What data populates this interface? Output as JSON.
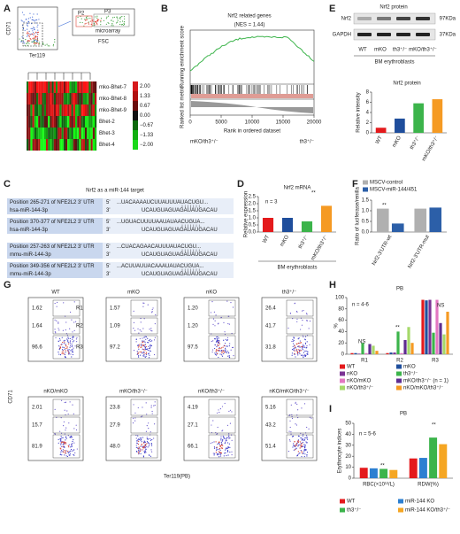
{
  "figure": {
    "A": {
      "letter": "A",
      "y_axis": "CD71",
      "x_axis": "Ter119",
      "x_axis_2": "FSC",
      "gates": [
        "P2",
        "P3"
      ],
      "sorted": "microarray",
      "rows": [
        "mko-Bhet-7",
        "mko-Bhet-8",
        "mko-Bhet-9",
        "Bhet-2",
        "Bhet-3",
        "Bhet-4"
      ],
      "scale": [
        "2.00",
        "1.33",
        "0.67",
        "0.00",
        "−0.67",
        "−1.33",
        "−2.00"
      ]
    },
    "B": {
      "letter": "B",
      "title": "Nrf2 related genes",
      "nes": "(NES = 1.44)",
      "y_axis": "Running enrichment score",
      "y_axis_2": "Ranked list metric",
      "x_axis": "Rank in ordered dataset",
      "x_ticks": [
        "0",
        "5000",
        "10000",
        "15000",
        "20000"
      ],
      "left": "mKO/th3⁺/⁻",
      "right": "th3⁺/⁻"
    },
    "C": {
      "letter": "C",
      "title": "Nrf2 as a miR-144 target",
      "five": "5'",
      "three": "3'",
      "entries": [
        {
          "position": "Position 265-271 of NFE2L2 3' UTR",
          "utr": "...UACAAAAUCUUAUUUAUACUGU...",
          "mirna": "hsa-miR-144-3p",
          "mirna_seq": "UCAUGUAGUAGAUAUGACAU"
        },
        {
          "position": "Position 370-377 of NFE2L2 3' UTR",
          "utr": "...UGUACUUUUAAUAUAACUGUA...",
          "mirna": "hsa-miR-144-3p",
          "mirna_seq": "UCAUGUAGUAGAUAUGACAU"
        },
        {
          "position": "Position 257-263 of NFE2L2 3' UTR",
          "utr": "...CUACAGAACAUUUAUACUGU...",
          "mirna": "mmu-miR-144-3p",
          "mirna_seq": "UCAUGUAGUAGAUAUGACAU"
        },
        {
          "position": "Position 349-356 of NFE2L2 3' UTR",
          "utr": "...ACUUAUUACAAAUAUACUGUA...",
          "mirna": "mmu-miR-144-3p",
          "mirna_seq": "UCAUGUAGUAGAUAUGACAU"
        }
      ]
    },
    "D": {
      "letter": "D"
    },
    "E": {
      "letter": "E",
      "title": "Nrf2 protein",
      "bands": [
        "Nrf2",
        "GAPDH"
      ],
      "sizes": [
        "97KDa",
        "37KDa"
      ],
      "lanes": [
        "WT",
        "mKO",
        "th3⁺/⁻",
        "mKO/th3⁺/⁻"
      ],
      "cells": "BM erythroblasts"
    },
    "F": {
      "letter": "F"
    },
    "G": {
      "letter": "G",
      "y_axis": "CD71",
      "x_axis": "Ter119(PB)",
      "regions": [
        "R1",
        "R2",
        "R3"
      ],
      "plots": [
        {
          "title": "WT",
          "percents": [
            "1.62",
            "1.64",
            "96.6"
          ]
        },
        {
          "title": "mKO",
          "percents": [
            "1.57",
            "1.09",
            "97.2"
          ]
        },
        {
          "title": "nKO",
          "percents": [
            "1.20",
            "1.20",
            "97.5"
          ]
        },
        {
          "title": "th3⁺/⁻",
          "percents": [
            "26.4",
            "41.7",
            "31.8"
          ]
        },
        {
          "title": "nKO/mKO",
          "percents": [
            "2.01",
            "15.7",
            "81.9"
          ]
        },
        {
          "title": "mKO/th3⁺/⁻",
          "percents": [
            "23.8",
            "27.9",
            "48.0"
          ]
        },
        {
          "title": "nKO/th3⁺/⁻",
          "percents": [
            "4.19",
            "27.1",
            "66.1"
          ]
        },
        {
          "title": "nKO/mKO/th3⁺/⁻",
          "percents": [
            "5.16",
            "43.2",
            "51.4"
          ]
        }
      ]
    },
    "H": {
      "letter": "H"
    },
    "I": {
      "letter": "I"
    }
  },
  "chart_data": [
    {
      "type": "bar",
      "title": "Nrf2 protein",
      "y_label": "Relative intensity",
      "categories": [
        "WT",
        "mKO",
        "th3⁺/⁻",
        "mKO/th3⁺/⁻"
      ],
      "values": [
        1,
        2.8,
        5.8,
        6.6
      ],
      "colors": [
        "#e41a1c",
        "#1f4e9c",
        "#3cb44b",
        "#f59a23"
      ],
      "ylim": [
        0,
        8
      ],
      "yticks": [
        0,
        2,
        4,
        6,
        8
      ]
    },
    {
      "type": "bar",
      "title": "Nrf2 mRNA",
      "y_label": "Relative expression",
      "x_label": "BM erythroblasts",
      "categories": [
        "WT",
        "mKO",
        "th3⁺/⁻",
        "mKO/th3⁺/⁻"
      ],
      "values": [
        1.0,
        1.0,
        0.75,
        1.85
      ],
      "colors": [
        "#e41a1c",
        "#1f4e9c",
        "#3cb44b",
        "#f59a23"
      ],
      "ylim": [
        0,
        2.5
      ],
      "yticks": [
        {
          "value": 0,
          "label": "0.0"
        },
        {
          "value": 0.5,
          "label": "0.5"
        },
        {
          "value": 1,
          "label": "1.0"
        },
        {
          "value": 1.5,
          "label": "1.5"
        },
        {
          "value": 2,
          "label": "2.0"
        },
        {
          "value": 2.5,
          "label": "2.5"
        }
      ],
      "annotations": [
        "n = 3",
        "**"
      ]
    },
    {
      "type": "bar",
      "y_label": "Ratio of luciferase/renilla",
      "categories": [
        "Nrf2-3'UTR-wt",
        "Nrf2-3'UTR-mut"
      ],
      "series": [
        {
          "name": "MSCV-control",
          "color": "#b0b0b0",
          "values": [
            1.1,
            1.1
          ]
        },
        {
          "name": "MSCV-miR-144/451",
          "color": "#2c5fa8",
          "values": [
            0.4,
            1.15
          ]
        }
      ],
      "ylim": [
        0,
        1.5
      ],
      "yticks": [
        {
          "value": 0,
          "label": "0.0"
        },
        {
          "value": 0.5,
          "label": "0.5"
        },
        {
          "value": 1,
          "label": "1.0"
        },
        {
          "value": 1.5,
          "label": "1.5"
        }
      ],
      "annotations": [
        "**"
      ]
    },
    {
      "type": "bar",
      "title": "PB",
      "y_label": "%",
      "categories": [
        "R1",
        "R2",
        "R3"
      ],
      "series": [
        {
          "name": "WT",
          "color": "#e41a1c",
          "values": [
            2,
            2,
            96
          ]
        },
        {
          "name": "mKO",
          "color": "#1f4e9c",
          "values": [
            2,
            3,
            95
          ]
        },
        {
          "name": "nKO",
          "color": "#7b3294",
          "values": [
            1,
            3,
            96
          ]
        },
        {
          "name": "th3⁺/⁻",
          "color": "#3cb44b",
          "values": [
            20,
            40,
            38
          ]
        },
        {
          "name": "nKO/mKO",
          "color": "#e377c2",
          "values": [
            2,
            2,
            96
          ]
        },
        {
          "name": "mKO/th3⁺/⁻ (n = 1)",
          "color": "#5e2c91",
          "values": [
            18,
            25,
            55
          ]
        },
        {
          "name": "nKO/th3⁺/⁻",
          "color": "#a6d96a",
          "values": [
            15,
            48,
            35
          ]
        },
        {
          "name": "nKO/mKO/th3⁺/⁻",
          "color": "#f59a23",
          "values": [
            6,
            20,
            75
          ]
        }
      ],
      "ylim": [
        0,
        100
      ],
      "yticks": [
        0,
        20,
        40,
        60,
        80,
        100
      ],
      "annotations": [
        "n = 4-6",
        "NS",
        "**",
        "NS"
      ]
    },
    {
      "type": "bar",
      "title": "PB",
      "y_label": "Erythrocyte indices",
      "categories": [
        "RBC(×10¹²/L)",
        "RDW(%)"
      ],
      "series": [
        {
          "name": "WT",
          "color": "#e41a1c",
          "values": [
            9.5,
            18
          ]
        },
        {
          "name": "miR-144 KO",
          "color": "#2c7fd1",
          "values": [
            9,
            18.5
          ]
        },
        {
          "name": "th3⁺/⁻",
          "color": "#3cb44b",
          "values": [
            8.5,
            37
          ]
        },
        {
          "name": "miR-144 KO/th3⁺/⁻",
          "color": "#f5a623",
          "values": [
            7.5,
            31
          ]
        }
      ],
      "ylim": [
        0,
        50
      ],
      "yticks": [
        0,
        10,
        20,
        30,
        40,
        50
      ],
      "annotations": [
        "n = 5-6",
        "**",
        "**"
      ]
    }
  ]
}
